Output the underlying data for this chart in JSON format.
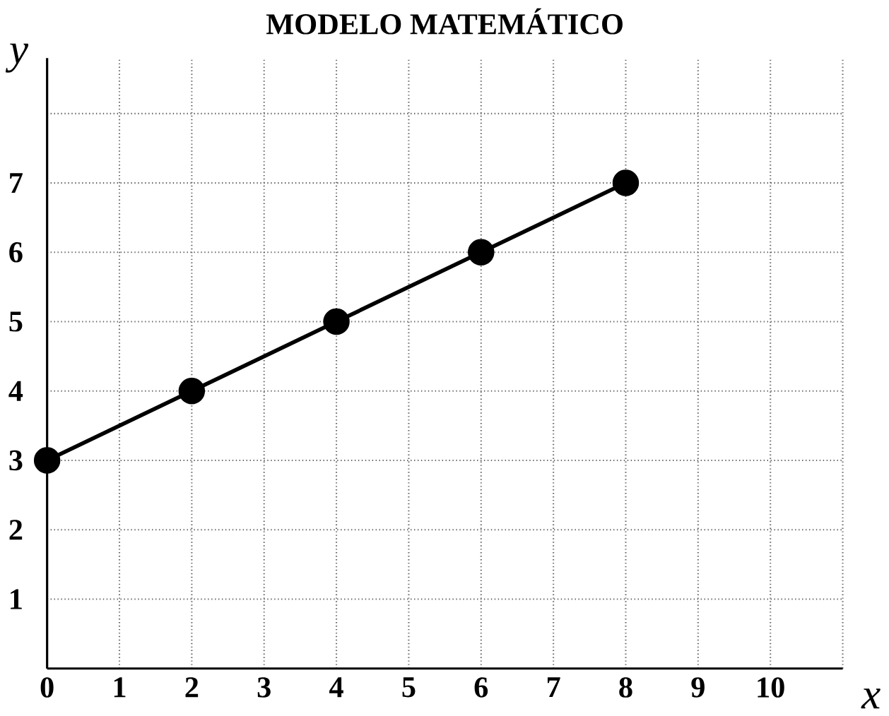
{
  "chart_data": {
    "type": "line",
    "title": "MODELO MATEMÁTICO",
    "xlabel": "x",
    "ylabel": "y",
    "x": [
      0,
      2,
      4,
      6,
      8
    ],
    "series": [
      {
        "color": "#000000",
        "values": [
          3,
          4,
          5,
          6,
          7
        ]
      }
    ],
    "xlim": [
      0,
      11
    ],
    "ylim": [
      0,
      8.8
    ],
    "xticks": [
      0,
      1,
      2,
      3,
      4,
      5,
      6,
      7,
      8,
      9,
      10,
      {
        "value": 11,
        "label": null
      }
    ],
    "yticks": [
      1,
      2,
      3,
      4,
      5,
      6,
      7,
      {
        "value": 8,
        "label": null
      }
    ],
    "grid": true,
    "marker": "circle",
    "line_style": "solid"
  }
}
